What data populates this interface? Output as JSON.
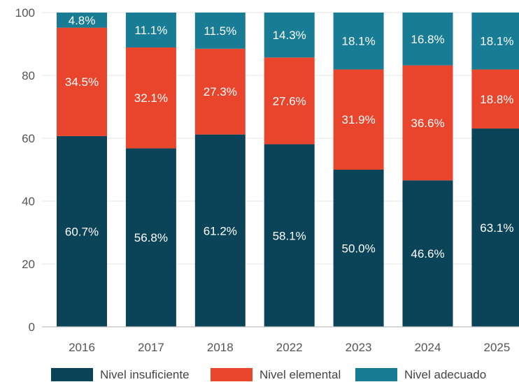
{
  "chart_data": {
    "type": "bar",
    "stacked": true,
    "categories": [
      "2016",
      "2017",
      "2018",
      "2022",
      "2023",
      "2024",
      "2025"
    ],
    "series": [
      {
        "name": "Nivel insuficiente",
        "color": "#0b4458",
        "values": [
          60.7,
          56.8,
          61.2,
          58.1,
          50.0,
          46.6,
          63.1
        ],
        "labels": [
          "60.7%",
          "56.8%",
          "61.2%",
          "58.1%",
          "50.0%",
          "46.6%",
          "63.1%"
        ]
      },
      {
        "name": "Nivel elemental",
        "color": "#e8452c",
        "values": [
          34.5,
          32.1,
          27.3,
          27.6,
          31.9,
          36.6,
          18.8
        ],
        "labels": [
          "34.5%",
          "32.1%",
          "27.3%",
          "27.6%",
          "31.9%",
          "36.6%",
          "18.8%"
        ]
      },
      {
        "name": "Nivel adecuado",
        "color": "#177c94",
        "values": [
          4.8,
          11.1,
          11.5,
          14.3,
          18.1,
          16.8,
          18.1
        ],
        "labels": [
          "4.8%",
          "11.1%",
          "11.5%",
          "14.3%",
          "18.1%",
          "16.8%",
          "18.1%"
        ]
      }
    ],
    "ylim": [
      0,
      100
    ],
    "yticks": [
      "0",
      "20",
      "40",
      "60",
      "80",
      "100"
    ],
    "grid": true,
    "legend": "bottom",
    "title": "",
    "xlabel": "",
    "ylabel": ""
  }
}
